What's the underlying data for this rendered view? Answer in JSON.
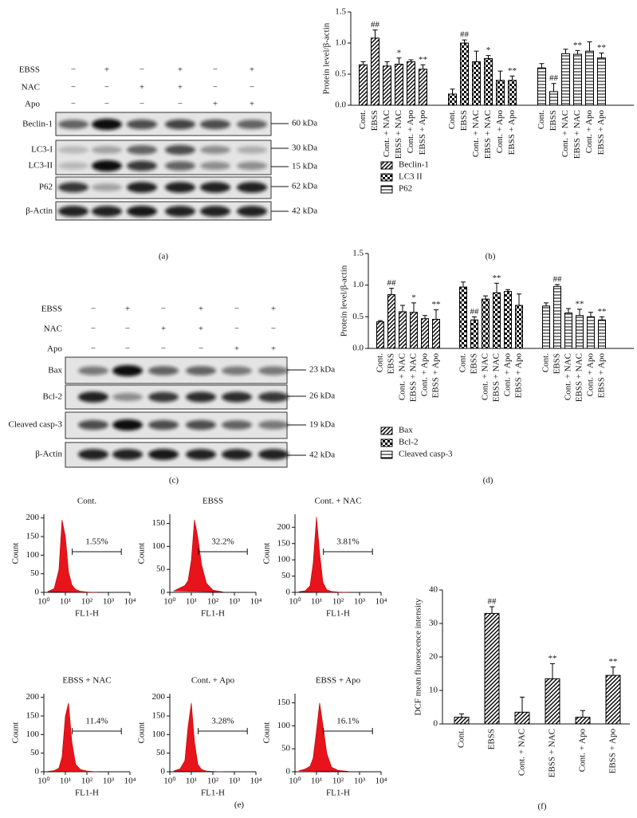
{
  "panel_labels": [
    "(a)",
    "(b)",
    "(c)",
    "(d)",
    "(e)",
    "(f)"
  ],
  "blots": [
    {
      "conditions": [
        {
          "name": "EBSS",
          "signs": [
            "−",
            "+",
            "−",
            "+",
            "−",
            "+"
          ]
        },
        {
          "name": "NAC",
          "signs": [
            "−",
            "−",
            "+",
            "+",
            "−",
            "−"
          ]
        },
        {
          "name": "Apo",
          "signs": [
            "−",
            "−",
            "−",
            "−",
            "+",
            "+"
          ]
        }
      ],
      "rows": [
        {
          "labels": [
            "Beclin-1"
          ],
          "kda": [
            "60 kDa"
          ]
        },
        {
          "labels": [
            "LC3-I",
            "LC3-II"
          ],
          "kda": [
            "30 kDa",
            "15 kDa"
          ]
        },
        {
          "labels": [
            "P62"
          ],
          "kda": [
            "62 kDa"
          ]
        },
        {
          "labels": [
            "β-Actin"
          ],
          "kda": [
            "42 kDa"
          ]
        }
      ]
    },
    {
      "conditions": [
        {
          "name": "EBSS",
          "signs": [
            "−",
            "+",
            "−",
            "+",
            "−",
            "+"
          ]
        },
        {
          "name": "NAC",
          "signs": [
            "−",
            "−",
            "+",
            "+",
            "−",
            "−"
          ]
        },
        {
          "name": "Apo",
          "signs": [
            "−",
            "−",
            "−",
            "−",
            "+",
            "+"
          ]
        }
      ],
      "rows": [
        {
          "labels": [
            "Bax"
          ],
          "kda": [
            "23 kDa"
          ]
        },
        {
          "labels": [
            "Bcl-2"
          ],
          "kda": [
            "26 kDa"
          ]
        },
        {
          "labels": [
            "Cleaved casp-3"
          ],
          "kda": [
            "19 kDa"
          ]
        },
        {
          "labels": [
            "β-Actin"
          ],
          "kda": [
            "42 kDa"
          ]
        }
      ]
    }
  ],
  "chart_data": [
    {
      "type": "bar",
      "y_label": "Protein level/β-actin",
      "categories": [
        "Cont.",
        "EBSS",
        "Cont. + NAC",
        "EBSS + NAC",
        "Cont. + Apo",
        "EBSS + Apo"
      ],
      "ylim": [
        0,
        1.5
      ],
      "yticks": [
        {
          "value": 0,
          "label": "0.0"
        },
        0.5,
        {
          "value": 1,
          "label": "1.0"
        },
        {
          "value": 1.5,
          "label": "1.5"
        }
      ],
      "series": [
        {
          "name": "Beclin-1",
          "pattern": "diagonal",
          "color": "#000000",
          "values": [
            0.65,
            1.08,
            0.63,
            0.66,
            0.7,
            0.58
          ],
          "errors": [
            0.05,
            0.13,
            0.07,
            0.1,
            0.03,
            0.07
          ],
          "annotations": [
            null,
            "##",
            null,
            "*",
            null,
            "**"
          ]
        },
        {
          "name": "LC3 II",
          "pattern": "checker",
          "color": "#000000",
          "values": [
            0.18,
            1.0,
            0.7,
            0.75,
            0.4,
            0.4
          ],
          "errors": [
            0.08,
            0.05,
            0.17,
            0.05,
            0.15,
            0.07
          ],
          "annotations": [
            null,
            "##",
            null,
            "*",
            null,
            "**"
          ]
        },
        {
          "name": "P62",
          "pattern": "horizontal",
          "color": "#000000",
          "values": [
            0.6,
            0.22,
            0.83,
            0.82,
            0.87,
            0.76
          ],
          "errors": [
            0.07,
            0.13,
            0.07,
            0.06,
            0.15,
            0.08
          ],
          "annotations": [
            null,
            "##",
            null,
            "**",
            null,
            "**"
          ]
        }
      ]
    },
    {
      "type": "bar",
      "y_label": "Protein level/β-actin",
      "categories": [
        "Cont.",
        "EBSS",
        "Cont. + NAC",
        "EBSS + NAC",
        "Cont. + Apo",
        "EBSS + Apo"
      ],
      "ylim": [
        0,
        1.5
      ],
      "yticks": [
        {
          "value": 0,
          "label": "0.0"
        },
        0.5,
        {
          "value": 1,
          "label": "1.0"
        },
        {
          "value": 1.5,
          "label": "1.5"
        }
      ],
      "series": [
        {
          "name": "Bax",
          "pattern": "diagonal",
          "color": "#000000",
          "values": [
            0.42,
            0.85,
            0.58,
            0.57,
            0.47,
            0.46
          ],
          "errors": [
            0.02,
            0.1,
            0.1,
            0.15,
            0.05,
            0.15
          ],
          "annotations": [
            null,
            "##",
            null,
            "*",
            null,
            "**"
          ]
        },
        {
          "name": "Bcl-2",
          "pattern": "checker",
          "color": "#000000",
          "values": [
            0.97,
            0.45,
            0.78,
            0.88,
            0.9,
            0.68
          ],
          "errors": [
            0.08,
            0.05,
            0.05,
            0.15,
            0.03,
            0.18
          ],
          "annotations": [
            null,
            "##",
            null,
            "**",
            null,
            null
          ]
        },
        {
          "name": "Cleaved casp-3",
          "pattern": "horizontal",
          "color": "#000000",
          "values": [
            0.67,
            0.98,
            0.56,
            0.52,
            0.5,
            0.45
          ],
          "errors": [
            0.05,
            0.03,
            0.07,
            0.1,
            0.07,
            0.05
          ],
          "annotations": [
            null,
            "##",
            null,
            "**",
            null,
            "**"
          ]
        }
      ]
    },
    {
      "type": "density",
      "x_label": "FL1-H",
      "y_label": "Count",
      "log_x": true,
      "color": "#e8141b",
      "xlim": [
        1,
        10000
      ],
      "xticks": [
        {
          "value": 1,
          "label": "10⁰"
        },
        {
          "value": 10,
          "label": "10¹"
        },
        {
          "value": 100,
          "label": "10²"
        },
        {
          "value": 1000,
          "label": "10³"
        },
        {
          "value": 10000,
          "label": "10⁴"
        }
      ],
      "panels": [
        {
          "title": "Cont.",
          "gate_label": "1.55%",
          "ylim": [
            0,
            210
          ],
          "yticks": [
            0,
            50,
            100,
            150,
            200
          ],
          "x": [
            1.5,
            3,
            5,
            7,
            10,
            14,
            20,
            30,
            50,
            100,
            300
          ],
          "values": [
            2,
            10,
            60,
            195,
            150,
            55,
            20,
            8,
            3,
            1,
            0
          ]
        },
        {
          "title": "EBSS",
          "gate_label": "32.2%",
          "ylim": [
            0,
            170
          ],
          "yticks": [
            0,
            50,
            100,
            150
          ],
          "x": [
            1.5,
            3,
            5,
            7,
            10,
            14,
            20,
            30,
            50,
            100,
            300
          ],
          "values": [
            3,
            10,
            15,
            25,
            70,
            158,
            120,
            60,
            20,
            5,
            1
          ]
        },
        {
          "title": "Cont. + NAC",
          "gate_label": "3.81%",
          "ylim": [
            0,
            240
          ],
          "yticks": [
            0,
            50,
            100,
            150,
            200
          ],
          "x": [
            1.5,
            3,
            5,
            7,
            10,
            14,
            20,
            30,
            50,
            100,
            300
          ],
          "values": [
            2,
            5,
            20,
            90,
            232,
            120,
            30,
            8,
            3,
            1,
            0
          ]
        },
        {
          "title": "EBSS + NAC",
          "gate_label": "11.4%",
          "ylim": [
            0,
            210
          ],
          "yticks": [
            0,
            50,
            100,
            150,
            200
          ],
          "x": [
            1.5,
            3,
            5,
            7,
            10,
            14,
            20,
            30,
            50,
            100,
            300
          ],
          "values": [
            1,
            3,
            10,
            40,
            150,
            185,
            80,
            20,
            6,
            2,
            0
          ]
        },
        {
          "title": "Cont. + Apo",
          "gate_label": "3.28%",
          "ylim": [
            0,
            210
          ],
          "yticks": [
            0,
            50,
            100,
            150,
            200
          ],
          "x": [
            1.5,
            3,
            5,
            7,
            10,
            14,
            20,
            30,
            50,
            100,
            300
          ],
          "values": [
            2,
            8,
            30,
            120,
            185,
            80,
            20,
            6,
            2,
            1,
            0
          ]
        },
        {
          "title": "EBSS + Apo",
          "gate_label": "16.1%",
          "ylim": [
            0,
            170
          ],
          "yticks": [
            0,
            50,
            100,
            150
          ],
          "x": [
            1.5,
            3,
            5,
            7,
            10,
            14,
            20,
            30,
            50,
            100,
            300
          ],
          "values": [
            2,
            6,
            12,
            30,
            90,
            150,
            100,
            40,
            10,
            3,
            1
          ]
        }
      ]
    },
    {
      "type": "bar",
      "y_label": "DCF mean fluorescence intensity",
      "categories": [
        "Cont.",
        "EBSS",
        "Cont. + NAC",
        "EBSS + NAC",
        "Cont. + Apo",
        "EBSS + Apo"
      ],
      "ylim": [
        0,
        40
      ],
      "yticks": [
        0,
        10,
        20,
        30,
        40
      ],
      "pattern": "diagonal",
      "color": "#000000",
      "values": [
        2,
        33,
        3.5,
        13.5,
        2,
        14.5
      ],
      "errors": [
        1,
        2,
        4.5,
        4.5,
        2,
        2.5
      ],
      "annotations": [
        null,
        "##",
        null,
        "**",
        null,
        "**"
      ]
    }
  ]
}
